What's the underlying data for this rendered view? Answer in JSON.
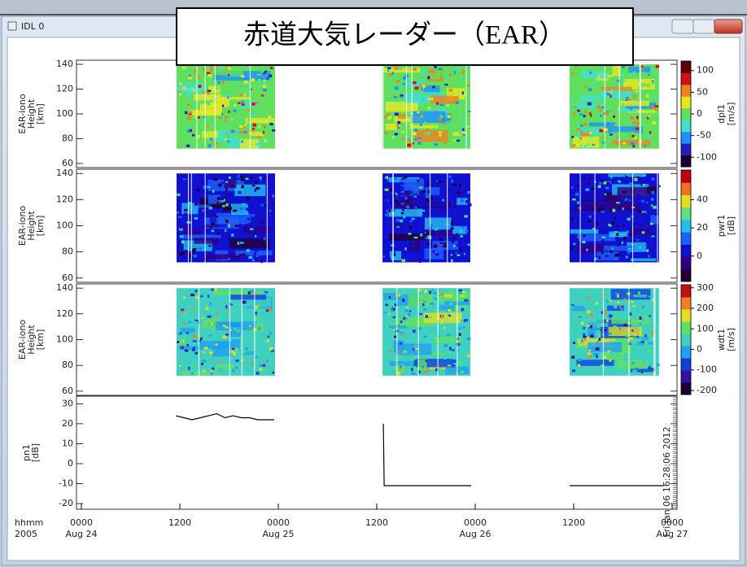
{
  "window": {
    "title": "IDL 0"
  },
  "banner": {
    "title": "赤道大気レーダー（EAR）"
  },
  "chart_data": [
    {
      "type": "heatmap",
      "ylabel": [
        "EAR-iono",
        "Height",
        "[km]"
      ],
      "ylim": [
        58,
        142
      ],
      "yticks": [
        60,
        80,
        100,
        120,
        140
      ],
      "zlabel": [
        "dpl1",
        "[m/s]"
      ],
      "zlim": [
        -122,
        122
      ],
      "zticks": [
        100,
        50,
        0,
        -50,
        -100
      ],
      "colormap": [
        "#1a0030",
        "#2020c0",
        "#1e90ff",
        "#40e0d0",
        "#5ee05e",
        "#e8e820",
        "#f08020",
        "#d01010",
        "#600000"
      ],
      "xlim": [
        0,
        72
      ],
      "coverage": [
        [
          11.6,
          23.6
        ],
        [
          36.7,
          47.4
        ],
        [
          59.5,
          70.4
        ]
      ]
    },
    {
      "type": "heatmap",
      "ylabel": [
        "EAR-iono",
        "Height",
        "[km]"
      ],
      "ylim": [
        58,
        142
      ],
      "yticks": [
        60,
        80,
        100,
        120,
        140
      ],
      "zlabel": [
        "pwr1",
        "[dB]"
      ],
      "zlim": [
        -18,
        61
      ],
      "zticks": [
        40,
        20,
        0
      ],
      "colormap": [
        "#200030",
        "#300080",
        "#1010d0",
        "#1e60ff",
        "#20c0f0",
        "#60e080",
        "#e0e020",
        "#f07020",
        "#c00010"
      ],
      "xlim": [
        0,
        72
      ],
      "coverage": [
        [
          11.6,
          23.6
        ],
        [
          36.7,
          47.4
        ],
        [
          59.5,
          70.4
        ]
      ]
    },
    {
      "type": "heatmap",
      "ylabel": [
        "EAR-iono",
        "Height",
        "[km]"
      ],
      "ylim": [
        58,
        142
      ],
      "yticks": [
        60,
        80,
        100,
        120,
        140
      ],
      "zlabel": [
        "wdt1",
        "[m/s]"
      ],
      "zlim": [
        -220,
        315
      ],
      "zticks": [
        300,
        200,
        100,
        0,
        -100,
        -200
      ],
      "colormap": [
        "#1a0030",
        "#3010a0",
        "#1040e0",
        "#20a0f0",
        "#40d0c0",
        "#60e060",
        "#e0e020",
        "#f08020",
        "#c01010"
      ],
      "xlim": [
        0,
        72
      ],
      "coverage": [
        [
          11.6,
          23.6
        ],
        [
          36.7,
          47.4
        ],
        [
          59.5,
          70.4
        ]
      ]
    },
    {
      "type": "line",
      "ylabel": [
        "pn1",
        "[dB]"
      ],
      "ylim": [
        -22,
        33
      ],
      "yticks": [
        30,
        20,
        10,
        0,
        -10,
        -20
      ],
      "xlim": [
        0,
        72
      ],
      "xticks": [
        {
          "value": 0,
          "label": "0000"
        },
        {
          "value": 12,
          "label": "1200"
        },
        {
          "value": 24,
          "label": "0000"
        },
        {
          "value": 36,
          "label": "1200"
        },
        {
          "value": 48,
          "label": "0000"
        },
        {
          "value": 60,
          "label": "1200"
        },
        {
          "value": 72,
          "label": "0000"
        }
      ],
      "xtick_dates": [
        {
          "value": 0,
          "label": "Aug 24"
        },
        {
          "value": 24,
          "label": "Aug 25"
        },
        {
          "value": 48,
          "label": "Aug 26"
        },
        {
          "value": 72,
          "label": "Aug 27"
        }
      ],
      "xaxis_label": [
        "hhmm",
        "2005"
      ],
      "timestamp": "Fri Jan 06 16:28:06 2012",
      "color": "#000000",
      "x": [
        11.5,
        12.5,
        13.5,
        14.5,
        15.5,
        16.5,
        17.5,
        18.5,
        19.5,
        20.5,
        21.5,
        22.5,
        23.5,
        30,
        36.8,
        36.9,
        47.5,
        53,
        59.5,
        71
      ],
      "values": [
        24,
        23,
        22,
        23,
        24,
        25,
        23,
        24,
        23,
        23,
        22,
        22,
        22,
        null,
        20,
        -11,
        -11,
        null,
        -11,
        -11
      ]
    }
  ]
}
